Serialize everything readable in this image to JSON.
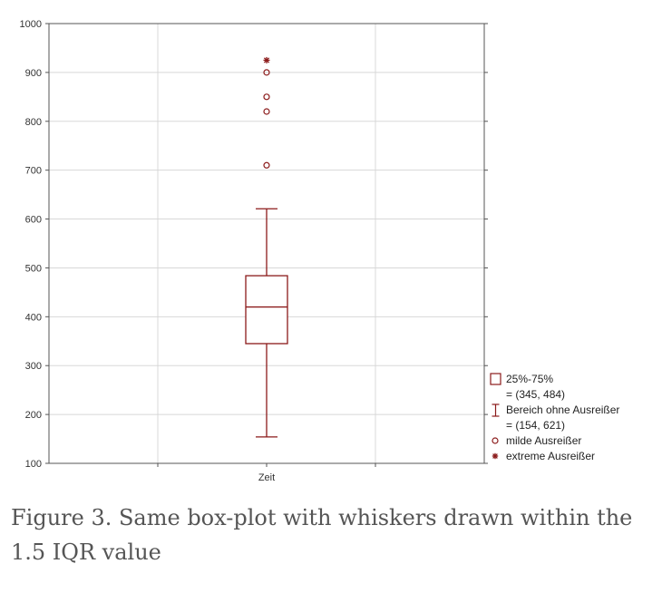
{
  "caption": "Figure 3. Same box-plot with whiskers drawn within the 1.5 IQR value",
  "colors": {
    "accent": "#8b1a1a",
    "grid": "#d8d8d8",
    "axis": "#555555"
  },
  "chart_data": {
    "type": "box",
    "title": "",
    "xlabel": "",
    "ylabel": "",
    "ylim": [
      100,
      1000
    ],
    "y_ticks": [
      100,
      200,
      300,
      400,
      500,
      600,
      700,
      800,
      900,
      1000
    ],
    "grid": true,
    "legend_position": "right",
    "categories": [
      "Zeit"
    ],
    "box": {
      "q1": 345,
      "median": 420,
      "q3": 484,
      "whisker_low": 154,
      "whisker_high": 621
    },
    "mild_outliers": [
      710,
      820,
      850,
      900
    ],
    "extreme_outliers": [
      925
    ],
    "legend": [
      {
        "symbol": "box",
        "label": "25%-75%",
        "detail": "= (345, 484)"
      },
      {
        "symbol": "whisker",
        "label": "Bereich ohne Ausreißer",
        "detail": "= (154, 621)"
      },
      {
        "symbol": "circle",
        "label": "milde Ausreißer",
        "detail": ""
      },
      {
        "symbol": "star",
        "label": "extreme Ausreißer",
        "detail": ""
      }
    ]
  }
}
